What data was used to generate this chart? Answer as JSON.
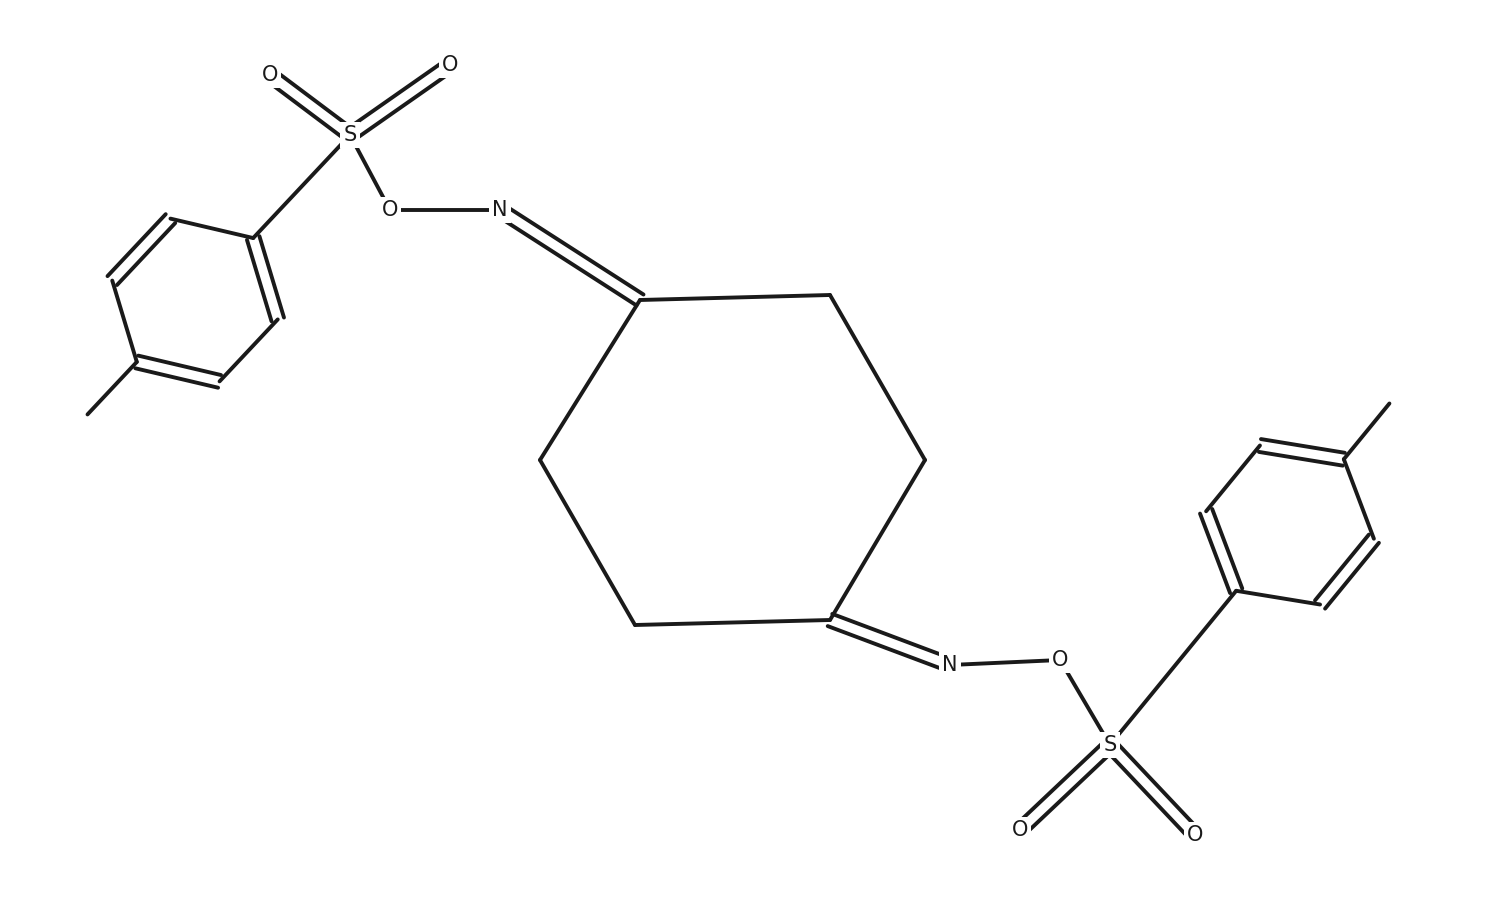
{
  "background_color": "#ffffff",
  "line_color": "#1a1a1a",
  "line_width": 2.8,
  "figsize": [
    15.1,
    9.18
  ],
  "dpi": 100,
  "xlim": [
    0,
    15.1
  ],
  "ylim": [
    0,
    9.18
  ]
}
